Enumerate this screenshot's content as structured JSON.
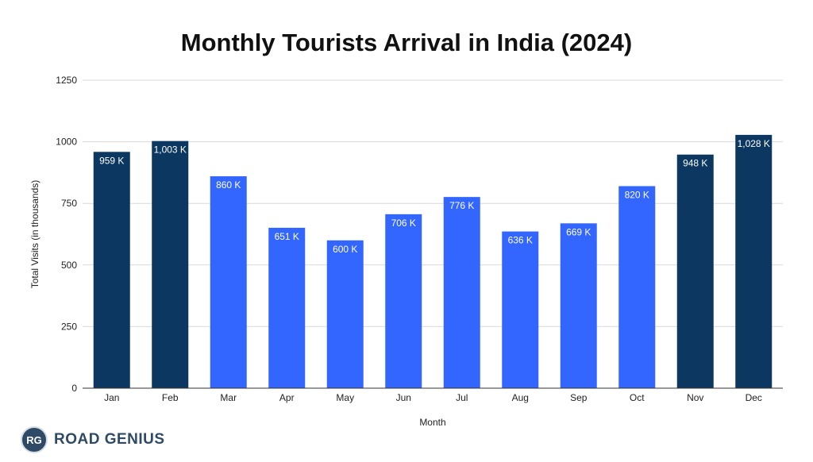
{
  "chart_data": {
    "type": "bar",
    "title": "Monthly Tourists Arrival in India (2024)",
    "xlabel": "Month",
    "ylabel": "Total Visits (in thousands)",
    "categories": [
      "Jan",
      "Feb",
      "Mar",
      "Apr",
      "May",
      "Jun",
      "Jul",
      "Aug",
      "Sep",
      "Oct",
      "Nov",
      "Dec"
    ],
    "values": [
      959,
      1003,
      860,
      651,
      600,
      706,
      776,
      636,
      669,
      820,
      948,
      1028
    ],
    "data_labels": [
      "959 K",
      "1,003 K",
      "860 K",
      "651 K",
      "600 K",
      "706 K",
      "776 K",
      "636 K",
      "669 K",
      "820 K",
      "948 K",
      "1,028 K"
    ],
    "highlighted": [
      true,
      true,
      false,
      false,
      false,
      false,
      false,
      false,
      false,
      false,
      true,
      true
    ],
    "ylim": [
      0,
      1250
    ],
    "yticks": [
      0,
      250,
      500,
      750,
      1000,
      1250
    ],
    "ytick_labels": [
      "0",
      "250",
      "500",
      "750",
      "1000",
      "1250"
    ],
    "grid": true,
    "legend": "none",
    "colors": {
      "peak": "#0b3760",
      "regular": "#3366ff",
      "grid": "#d9d9d9",
      "axis": "#333333"
    }
  },
  "brand": {
    "badge": "RG",
    "name": "ROAD GENIUS"
  }
}
